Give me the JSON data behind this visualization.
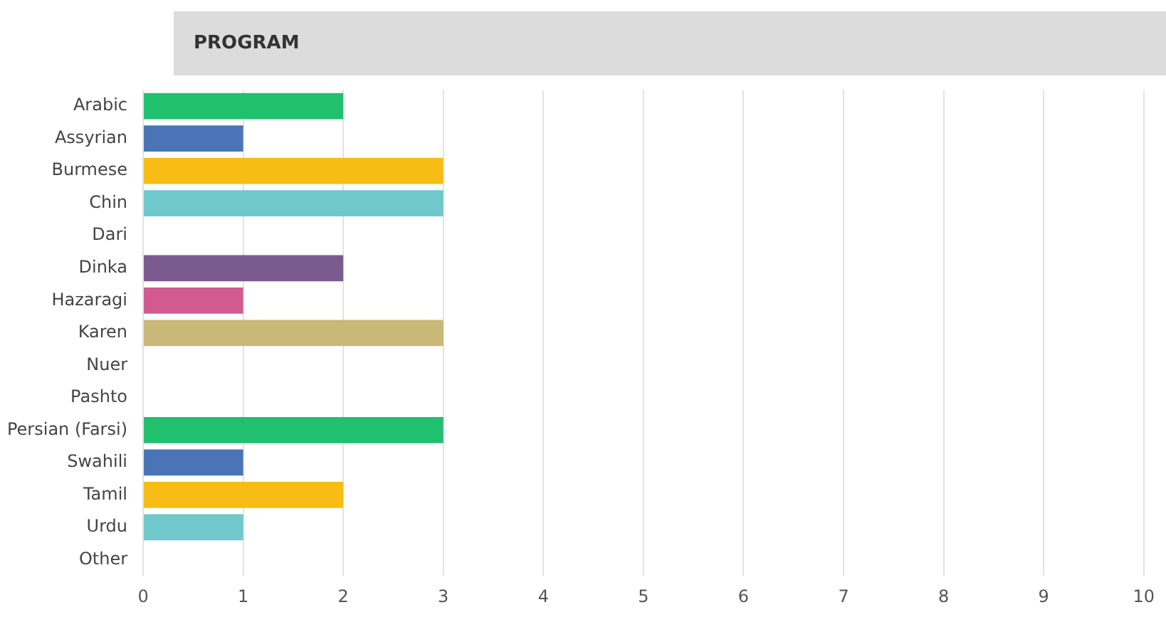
{
  "chart_data": {
    "type": "bar",
    "orientation": "horizontal",
    "title": "PROGRAM",
    "categories": [
      "Arabic",
      "Assyrian",
      "Burmese",
      "Chin",
      "Dari",
      "Dinka",
      "Hazaragi",
      "Karen",
      "Nuer",
      "Pashto",
      "Persian (Farsi)",
      "Swahili",
      "Tamil",
      "Urdu",
      "Other"
    ],
    "values": [
      2,
      1,
      3,
      3,
      0,
      2,
      1,
      3,
      0,
      0,
      3,
      1,
      2,
      1,
      0
    ],
    "colors": [
      "#21c06f",
      "#4a74b5",
      "#f7bd14",
      "#6fc8cc",
      "#7b5a8f",
      "#7b5a8f",
      "#d25a8f",
      "#c9b877",
      "#c9b877",
      "#c9b877",
      "#21c06f",
      "#4a74b5",
      "#f7bd14",
      "#6fc8cc",
      "#6fc8cc"
    ],
    "xlim": [
      0,
      10
    ],
    "xticks": [
      0,
      1,
      2,
      3,
      4,
      5,
      6,
      7,
      8,
      9,
      10
    ],
    "grid": "x",
    "legend": false
  }
}
